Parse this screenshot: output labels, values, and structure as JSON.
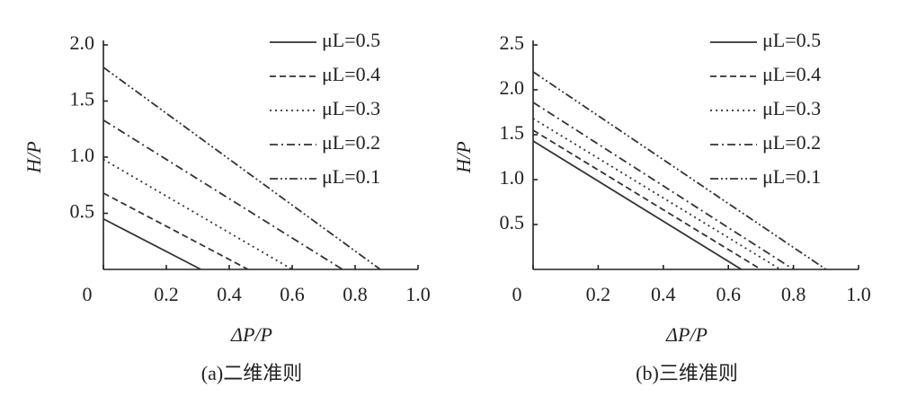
{
  "chart_data": [
    {
      "type": "line",
      "caption": "(a)二维准则",
      "xlabel": "ΔP/P",
      "ylabel": "H/P",
      "xlim": [
        0,
        1
      ],
      "ylim": [
        0,
        2
      ],
      "xticks": [
        0,
        0.2,
        0.4,
        0.6,
        0.8,
        {
          "value": 1,
          "label": "1.0"
        }
      ],
      "yticks": [
        0.5,
        {
          "value": 1,
          "label": "1.0"
        },
        1.5,
        {
          "value": 2,
          "label": "2.0"
        }
      ],
      "series": [
        {
          "name": "μL=0.5",
          "color": "#333",
          "dash": "none",
          "x": [
            0,
            0.31
          ],
          "values": [
            0.45,
            0
          ]
        },
        {
          "name": "μL=0.4",
          "color": "#333",
          "dash": "7,4",
          "x": [
            0,
            0.46
          ],
          "values": [
            0.68,
            0
          ]
        },
        {
          "name": "μL=0.3",
          "color": "#333",
          "dash": "2,4",
          "x": [
            0,
            0.6
          ],
          "values": [
            0.98,
            0
          ]
        },
        {
          "name": "μL=0.2",
          "color": "#333",
          "dash": "9,4,2,4",
          "x": [
            0,
            0.76
          ],
          "values": [
            1.33,
            0
          ]
        },
        {
          "name": "μL=0.1",
          "color": "#333",
          "dash": "9,3,2,3,2,3",
          "x": [
            0,
            0.88
          ],
          "values": [
            1.8,
            0
          ]
        }
      ]
    },
    {
      "type": "line",
      "caption": "(b)三维准则",
      "xlabel": "ΔP/P",
      "ylabel": "H/P",
      "xlim": [
        0,
        1
      ],
      "ylim": [
        0,
        2.5
      ],
      "xticks": [
        0,
        0.2,
        0.4,
        0.6,
        0.8,
        {
          "value": 1,
          "label": "1.0"
        }
      ],
      "yticks": [
        0.5,
        {
          "value": 1,
          "label": "1.0"
        },
        1.5,
        {
          "value": 2,
          "label": "2.0"
        },
        2.5
      ],
      "series": [
        {
          "name": "μL=0.5",
          "color": "#333",
          "dash": "none",
          "x": [
            0,
            0.64
          ],
          "values": [
            1.43,
            0
          ]
        },
        {
          "name": "μL=0.4",
          "color": "#333",
          "dash": "7,4",
          "x": [
            0,
            0.7
          ],
          "values": [
            1.55,
            0
          ]
        },
        {
          "name": "μL=0.3",
          "color": "#333",
          "dash": "2,4",
          "x": [
            0,
            0.76
          ],
          "values": [
            1.68,
            0
          ]
        },
        {
          "name": "μL=0.2",
          "color": "#333",
          "dash": "9,4,2,4",
          "x": [
            0,
            0.8
          ],
          "values": [
            1.86,
            0
          ]
        },
        {
          "name": "μL=0.1",
          "color": "#333",
          "dash": "9,3,2,3,2,3",
          "x": [
            0,
            0.9
          ],
          "values": [
            2.2,
            0
          ]
        }
      ]
    }
  ]
}
